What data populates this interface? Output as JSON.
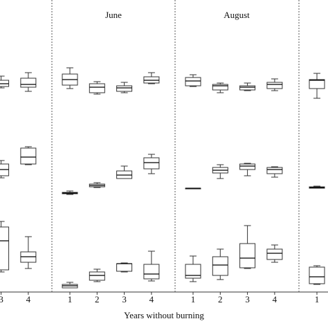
{
  "chart_data": {
    "type": "box",
    "x_label": "Years without burning",
    "ylim": [
      0,
      380
    ],
    "color": "#333333",
    "panels": [
      {
        "categories": [
          "3",
          "4"
        ],
        "groups": [
          [
            {
              "min": 293,
              "q1": 295,
              "median": 299,
              "q3": 304,
              "max": 310
            },
            {
              "min": 288,
              "q1": 294,
              "median": 298,
              "q3": 307,
              "max": 315
            }
          ],
          [
            {
              "min": 163,
              "q1": 166,
              "median": 175,
              "q3": 183,
              "max": 188
            },
            {
              "min": 182,
              "q1": 183,
              "median": 193,
              "q3": 206,
              "max": 208
            }
          ],
          [
            {
              "min": 27,
              "q1": 30,
              "median": 72,
              "q3": 92,
              "max": 100
            },
            {
              "min": 32,
              "q1": 41,
              "median": 49,
              "q3": 56,
              "max": 78
            }
          ]
        ]
      },
      {
        "title": "June",
        "categories": [
          "1",
          "2",
          "3",
          "4"
        ],
        "groups": [
          [
            {
              "min": 292,
              "q1": 297,
              "median": 305,
              "q3": 313,
              "max": 322
            },
            {
              "min": 284,
              "q1": 286,
              "median": 294,
              "q3": 299,
              "max": 302
            },
            {
              "min": 286,
              "q1": 288,
              "median": 293,
              "q3": 296,
              "max": 301
            },
            {
              "min": 299,
              "q1": 300,
              "median": 304,
              "q3": 309,
              "max": 315
            }
          ],
          [
            {
              "min": 139,
              "q1": 140,
              "median": 141,
              "q3": 142,
              "max": 144
            },
            {
              "min": 149,
              "q1": 150,
              "median": 152,
              "q3": 154,
              "max": 156
            },
            {
              "min": 162,
              "q1": 162,
              "median": 167,
              "q3": 173,
              "max": 180
            },
            {
              "min": 169,
              "q1": 176,
              "median": 185,
              "q3": 192,
              "max": 197
            }
          ],
          [
            {
              "min": 4,
              "q1": 4,
              "median": 7,
              "q3": 9,
              "max": 12
            },
            {
              "min": 13,
              "q1": 15,
              "median": 22,
              "q3": 27,
              "max": 31
            },
            {
              "min": 27,
              "q1": 28,
              "median": 39,
              "q3": 39,
              "max": 40
            },
            {
              "min": 14,
              "q1": 17,
              "median": 24,
              "q3": 38,
              "max": 57
            }
          ]
        ]
      },
      {
        "title": "August",
        "categories": [
          "1",
          "2",
          "3",
          "4"
        ],
        "groups": [
          [
            {
              "min": 295,
              "q1": 296,
              "median": 303,
              "q3": 308,
              "max": 312
            },
            {
              "min": 286,
              "q1": 290,
              "median": 296,
              "q3": 298,
              "max": 300
            },
            {
              "min": 289,
              "q1": 290,
              "median": 294,
              "q3": 296,
              "max": 300
            },
            {
              "min": 289,
              "q1": 292,
              "median": 298,
              "q3": 301,
              "max": 306
            }
          ],
          [
            {
              "min": 147,
              "q1": 147,
              "median": 148,
              "q3": 148,
              "max": 148
            },
            {
              "min": 162,
              "q1": 170,
              "median": 174,
              "q3": 178,
              "max": 182
            },
            {
              "min": 166,
              "q1": 175,
              "median": 180,
              "q3": 183,
              "max": 184
            },
            {
              "min": 164,
              "q1": 169,
              "median": 175,
              "q3": 178,
              "max": 179
            }
          ],
          [
            {
              "min": 13,
              "q1": 18,
              "median": 22,
              "q3": 38,
              "max": 50
            },
            {
              "min": 16,
              "q1": 22,
              "median": 37,
              "q3": 49,
              "max": 60
            },
            {
              "min": 32,
              "q1": 33,
              "median": 47,
              "q3": 68,
              "max": 94
            },
            {
              "min": 41,
              "q1": 45,
              "median": 54,
              "q3": 60,
              "max": 66
            }
          ]
        ]
      },
      {
        "categories": [
          "1"
        ],
        "groups": [
          [
            {
              "min": 278,
              "q1": 292,
              "median": 304,
              "q3": 305,
              "max": 314
            }
          ],
          [
            {
              "min": 148,
              "q1": 148,
              "median": 149,
              "q3": 150,
              "max": 151
            }
          ],
          [
            {
              "min": 9,
              "q1": 10,
              "median": 20,
              "q3": 34,
              "max": 36
            }
          ]
        ]
      }
    ]
  }
}
